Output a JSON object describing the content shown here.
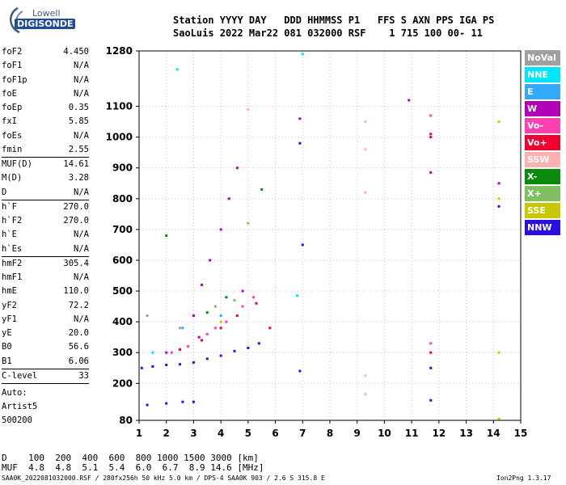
{
  "logo": {
    "line1": "Lowell",
    "line2": "DIGISONDE"
  },
  "header": {
    "line1": "Station YYYY DAY   DDD HHMMSS P1   FFS S AXN PPS IGA PS",
    "line2": "SaoLuis 2022 Mar22 081 032000 RSF    1 715 100 00- 11"
  },
  "params": [
    {
      "name": "foF2",
      "value": "4.450",
      "sep": false
    },
    {
      "name": "foF1",
      "value": "N/A",
      "sep": false
    },
    {
      "name": "foF1p",
      "value": "N/A",
      "sep": false
    },
    {
      "name": "foE",
      "value": "N/A",
      "sep": false
    },
    {
      "name": "foEp",
      "value": "0.35",
      "sep": false
    },
    {
      "name": "fxI",
      "value": "5.85",
      "sep": false
    },
    {
      "name": "foEs",
      "value": "N/A",
      "sep": false
    },
    {
      "name": "fmin",
      "value": "2.55",
      "sep": true
    },
    {
      "name": "MUF(D)",
      "value": "14.61",
      "sep": false
    },
    {
      "name": "M(D)",
      "value": "3.28",
      "sep": false
    },
    {
      "name": "D",
      "value": "N/A",
      "sep": true
    },
    {
      "name": "h`F",
      "value": "270.0",
      "sep": false
    },
    {
      "name": "h`F2",
      "value": "270.0",
      "sep": false
    },
    {
      "name": "h`E",
      "value": "N/A",
      "sep": false
    },
    {
      "name": "h`Es",
      "value": "N/A",
      "sep": true
    },
    {
      "name": "hmF2",
      "value": "305.4",
      "sep": false
    },
    {
      "name": "hmF1",
      "value": "N/A",
      "sep": false
    },
    {
      "name": "hmE",
      "value": "110.0",
      "sep": false
    },
    {
      "name": "yF2",
      "value": "72.2",
      "sep": false
    },
    {
      "name": "yF1",
      "value": "N/A",
      "sep": false
    },
    {
      "name": "yE",
      "value": "20.0",
      "sep": false
    },
    {
      "name": "B0",
      "value": "56.6",
      "sep": false
    },
    {
      "name": "B1",
      "value": "6.06",
      "sep": true
    },
    {
      "name": "C-level",
      "value": "33",
      "sep": true
    }
  ],
  "side_info": {
    "auto_label": "Auto:",
    "artist": "Artist5",
    "code": "500200"
  },
  "legend": [
    {
      "label": "NoVal",
      "color": "#a0a0a0"
    },
    {
      "label": "NNE",
      "color": "#00e5ff"
    },
    {
      "label": "E",
      "color": "#33a8ff"
    },
    {
      "label": "W",
      "color": "#b000b8"
    },
    {
      "label": "Vo-",
      "color": "#ff40b0"
    },
    {
      "label": "Vo+",
      "color": "#f00030"
    },
    {
      "label": "SSW",
      "color": "#ffb0b0"
    },
    {
      "label": "X-",
      "color": "#0a8a0a"
    },
    {
      "label": "X+",
      "color": "#80c060"
    },
    {
      "label": "SSE",
      "color": "#c8c800"
    },
    {
      "label": "NNW",
      "color": "#2a10e0"
    }
  ],
  "muf_table": {
    "line1": "D    100  200  400  600  800 1000 1500 3000 [km]",
    "line2": "MUF  4.8  4.8  5.1  5.4  6.0  6.7  8.9 14.6 [MHz]"
  },
  "footer": {
    "left": "SAA0K_2022081032000.RSF / 280fx256h 50 kHz 5.0 km / DPS-4 SAA0K 903 / 2.6 S 315.8 E",
    "right": "Ion2Png 1.3.17"
  },
  "chart_data": {
    "type": "scatter",
    "title": "",
    "xlabel": "",
    "ylabel": "",
    "xlim": [
      1,
      15
    ],
    "ylim": [
      80,
      1280
    ],
    "x_ticks": [
      "1",
      "2",
      "3",
      "4",
      "5",
      "6",
      "7",
      "8",
      "9",
      "10",
      "11",
      "12",
      "13",
      "14",
      "15"
    ],
    "y_ticks": [
      "80",
      "200",
      "300",
      "400",
      "500",
      "600",
      "700",
      "800",
      "900",
      "1000",
      "1100",
      "1280"
    ],
    "grid": true,
    "series": [
      {
        "name": "NNW",
        "color": "#2a10e0",
        "points": [
          [
            1.1,
            250
          ],
          [
            1.5,
            255
          ],
          [
            2.0,
            260
          ],
          [
            2.5,
            262
          ],
          [
            3.0,
            268
          ],
          [
            3.5,
            280
          ],
          [
            4.0,
            290
          ],
          [
            4.5,
            305
          ],
          [
            5.0,
            315
          ],
          [
            5.4,
            330
          ],
          [
            1.3,
            130
          ],
          [
            2.0,
            135
          ],
          [
            2.6,
            140
          ],
          [
            3.0,
            140
          ],
          [
            6.9,
            240
          ],
          [
            6.9,
            980
          ],
          [
            7.0,
            650
          ],
          [
            11.7,
            145
          ],
          [
            11.7,
            250
          ],
          [
            14.2,
            775
          ]
        ]
      },
      {
        "name": "W",
        "color": "#b000b8",
        "points": [
          [
            3.0,
            420
          ],
          [
            3.3,
            520
          ],
          [
            3.6,
            600
          ],
          [
            4.0,
            700
          ],
          [
            4.3,
            800
          ],
          [
            4.6,
            900
          ],
          [
            3.2,
            350
          ],
          [
            4.8,
            500
          ],
          [
            6.9,
            1060
          ],
          [
            11.7,
            1000
          ],
          [
            11.7,
            885
          ],
          [
            10.9,
            1120
          ],
          [
            14.2,
            850
          ],
          [
            2.0,
            300
          ]
        ]
      },
      {
        "name": "Vo-",
        "color": "#ff40b0",
        "points": [
          [
            2.2,
            300
          ],
          [
            2.8,
            320
          ],
          [
            3.5,
            360
          ],
          [
            4.2,
            400
          ],
          [
            4.8,
            450
          ],
          [
            5.2,
            480
          ],
          [
            3.8,
            380
          ],
          [
            11.7,
            330
          ],
          [
            11.7,
            1070
          ]
        ]
      },
      {
        "name": "Vo+",
        "color": "#f00030",
        "points": [
          [
            2.5,
            310
          ],
          [
            3.3,
            340
          ],
          [
            4.0,
            380
          ],
          [
            4.6,
            420
          ],
          [
            5.3,
            460
          ],
          [
            5.8,
            380
          ],
          [
            11.7,
            300
          ],
          [
            11.7,
            1010
          ]
        ]
      },
      {
        "name": "SSW",
        "color": "#ffb0b0",
        "points": [
          [
            9.3,
            225
          ],
          [
            9.3,
            165
          ],
          [
            9.3,
            960
          ],
          [
            9.3,
            1050
          ],
          [
            9.3,
            820
          ],
          [
            5.0,
            1090
          ]
        ]
      },
      {
        "name": "X-",
        "color": "#0a8a0a",
        "points": [
          [
            3.5,
            430
          ],
          [
            4.2,
            480
          ],
          [
            5.5,
            830
          ],
          [
            2.0,
            680
          ]
        ]
      },
      {
        "name": "X+",
        "color": "#80c060",
        "points": [
          [
            3.8,
            450
          ],
          [
            4.5,
            470
          ],
          [
            5.0,
            720
          ]
        ]
      },
      {
        "name": "SSE",
        "color": "#c8c800",
        "points": [
          [
            14.2,
            1050
          ],
          [
            14.2,
            300
          ],
          [
            14.2,
            800
          ],
          [
            14.2,
            85
          ],
          [
            4.0,
            400
          ]
        ]
      },
      {
        "name": "NNE",
        "color": "#00e5ff",
        "points": [
          [
            2.4,
            1220
          ],
          [
            1.5,
            300
          ],
          [
            7.0,
            1270
          ],
          [
            6.8,
            485
          ]
        ]
      },
      {
        "name": "E",
        "color": "#33a8ff",
        "points": [
          [
            2.6,
            380
          ],
          [
            4.0,
            420
          ]
        ]
      },
      {
        "name": "NoVal",
        "color": "#a0a0a0",
        "points": [
          [
            1.3,
            420
          ],
          [
            2.5,
            380
          ]
        ]
      }
    ]
  }
}
